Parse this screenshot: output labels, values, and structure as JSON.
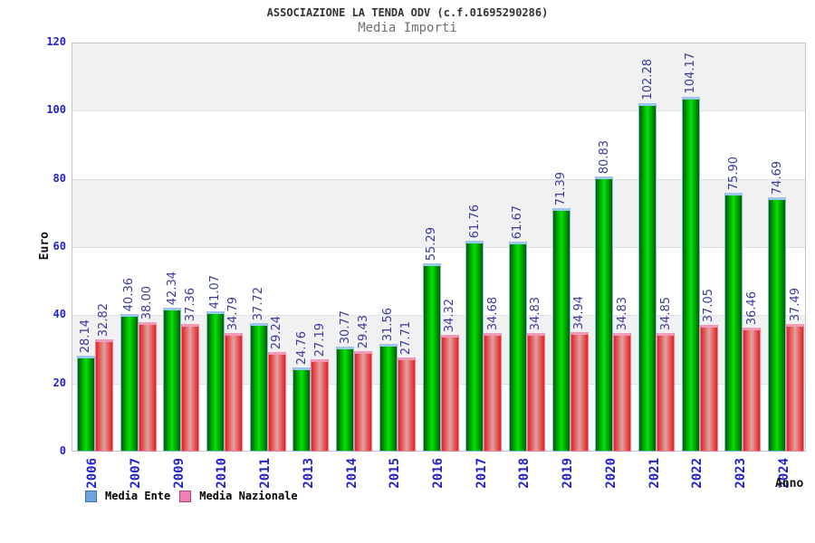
{
  "chart_data": {
    "type": "bar",
    "title": "ASSOCIAZIONE LA TENDA ODV (c.f.01695290286)",
    "subtitle": "Media Importi",
    "xlabel": "Anno",
    "ylabel": "Euro",
    "ylim": [
      0,
      120
    ],
    "ytick_step": 20,
    "yticks": [
      0,
      20,
      40,
      60,
      80,
      100,
      120
    ],
    "grid": "alternating-horizontal-bands",
    "band_colors": [
      "#f1f1f1",
      "#ffffff"
    ],
    "gridline_color": "#e2e2e2",
    "plot_border_color": "#c6c6c6",
    "axis_tick_color": "#2222cc",
    "value_label_color": "#3a3a99",
    "x_tick_rotation": -90,
    "value_labels_rotated": true,
    "legend_position": "bottom-left",
    "categories": [
      "2006",
      "2007",
      "2009",
      "2010",
      "2011",
      "2013",
      "2014",
      "2015",
      "2016",
      "2017",
      "2018",
      "2019",
      "2020",
      "2021",
      "2022",
      "2023",
      "2024"
    ],
    "series": [
      {
        "name": "Media Ente",
        "legend_fill": "#6fa1e0",
        "legend_border": "#3a6ea8",
        "bar_colors": [
          "#016001",
          "#00e400"
        ],
        "bar_border": "#86b9e8",
        "bar_cap": "#9cc6ec",
        "values": [
          28.14,
          40.36,
          42.34,
          41.07,
          37.72,
          24.76,
          30.77,
          31.56,
          55.29,
          61.76,
          61.67,
          71.39,
          80.83,
          102.28,
          104.17,
          75.9,
          74.69
        ]
      },
      {
        "name": "Media Nazionale",
        "legend_fill": "#ee82b4",
        "legend_border": "#aa4477",
        "bar_colors": [
          "#e81f1f",
          "#dfa3a3"
        ],
        "bar_border": "#f27e9f",
        "bar_cap": "#f29ab8",
        "values": [
          32.82,
          38.0,
          37.36,
          34.79,
          29.24,
          27.19,
          29.43,
          27.71,
          34.32,
          34.68,
          34.83,
          34.94,
          34.83,
          34.85,
          37.05,
          36.46,
          37.49
        ]
      }
    ]
  }
}
